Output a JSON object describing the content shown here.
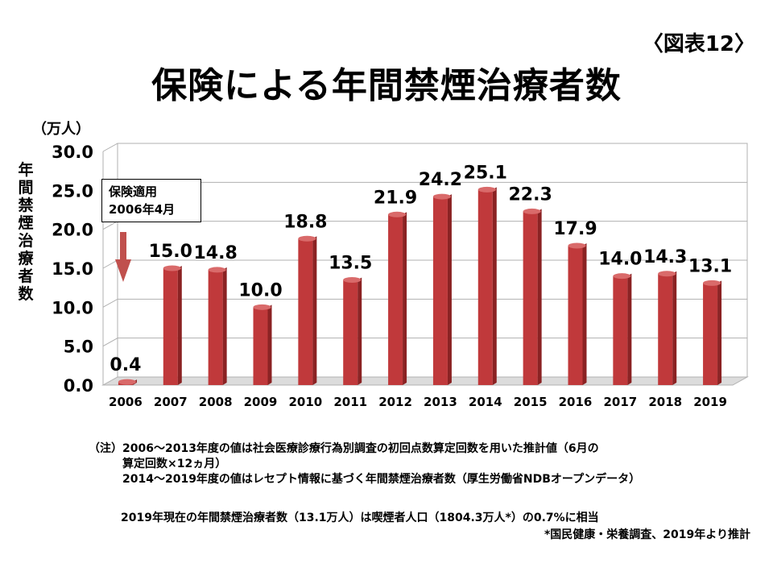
{
  "figure_label": "〈図表12〉",
  "title": "保険による年間禁煙治療者数",
  "unit": "（万人）",
  "callout": {
    "line1": "保険適用",
    "line2": "2006年4月"
  },
  "notes": {
    "tag": "（注）",
    "line1": "2006～2013年度の値は社会医療診療行為別調査の初回点数算定回数を用いた推計値（6月の",
    "line2": "算定回数×12ヵ月）",
    "line3": "2014～2019年度の値はレセプト情報に基づく年間禁煙治療者数（厚生労働省NDBオープンデータ）"
  },
  "summary": "2019年現在の年間禁煙治療者数（13.1万人）は喫煙者人口（1804.3万人*）の0.7%に相当",
  "source": "*国民健康・栄養調査、2019年より推計",
  "colors": {
    "bar": "#c0393b",
    "bar_top": "#d96a6a",
    "bar_side": "#8b2223",
    "arrow": "#c0504d",
    "grid": "#b0b0b0"
  },
  "chart_data": {
    "type": "bar",
    "title": "保険による年間禁煙治療者数",
    "ylabel": "年間禁煙治療者数",
    "yunit": "（万人）",
    "categories": [
      "2006",
      "2007",
      "2008",
      "2009",
      "2010",
      "2011",
      "2012",
      "2013",
      "2014",
      "2015",
      "2016",
      "2017",
      "2018",
      "2019"
    ],
    "values": [
      0.4,
      15.0,
      14.8,
      10.0,
      18.8,
      13.5,
      21.9,
      24.2,
      25.1,
      22.3,
      17.9,
      14.0,
      14.3,
      13.1
    ],
    "value_labels": [
      "0.4",
      "15.0",
      "14.8",
      "10.0",
      "18.8",
      "13.5",
      "21.9",
      "24.2",
      "25.1",
      "22.3",
      "17.9",
      "14.0",
      "14.3",
      "13.1"
    ],
    "yticks": [
      "0.0",
      "5.0",
      "10.0",
      "15.0",
      "20.0",
      "25.0",
      "30.0"
    ],
    "ylim": [
      0,
      30
    ],
    "grid": true
  }
}
